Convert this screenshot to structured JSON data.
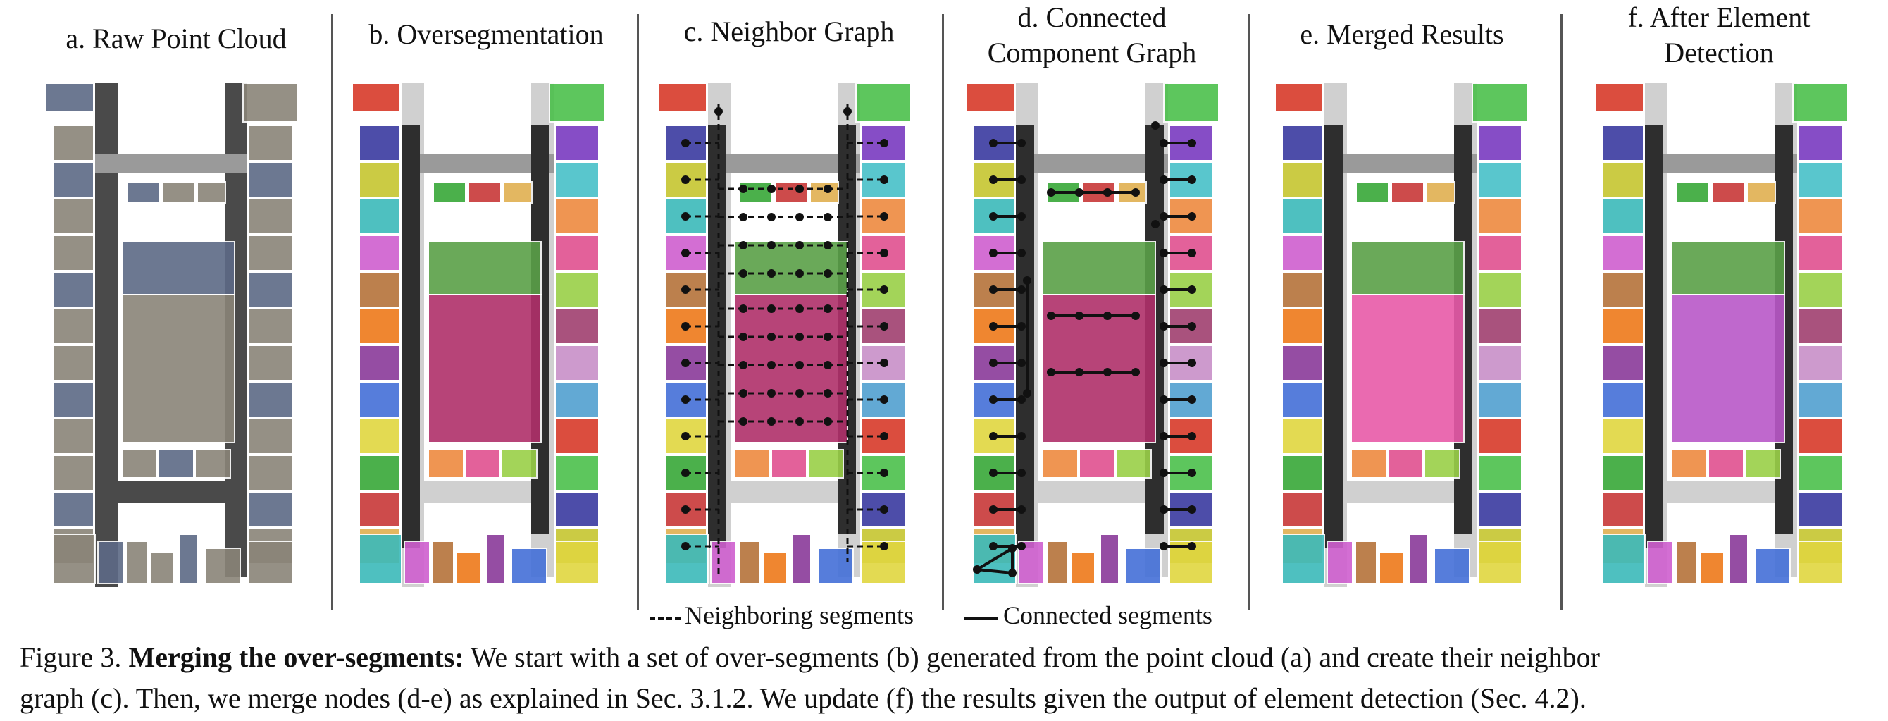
{
  "panels": [
    {
      "id": "a",
      "title_lines": [
        "a. Raw Point Cloud"
      ]
    },
    {
      "id": "b",
      "title_lines": [
        "b. Oversegmentation"
      ]
    },
    {
      "id": "c",
      "title_lines": [
        "c. Neighbor Graph"
      ]
    },
    {
      "id": "d",
      "title_lines": [
        "d. Connected",
        "Component Graph"
      ]
    },
    {
      "id": "e",
      "title_lines": [
        "e. Merged Results"
      ]
    },
    {
      "id": "f",
      "title_lines": [
        "f. After Element",
        "Detection"
      ]
    }
  ],
  "legend": {
    "neighbor": "Neighboring segments",
    "connected": "Connected segments"
  },
  "caption": {
    "prefix": "Figure 3.",
    "bold": "Merging the over-segments:",
    "line1_rest": "We start with a set of over-segments (b) generated from the point cloud (a) and create their neighbor",
    "line2": "graph (c). Then, we merge nodes (d-e) as explained in Sec. 3.1.2. We update (f) the results given the output of element detection (Sec. 4.2)."
  },
  "colors": {
    "hallway": "#3b3b3b",
    "raw_room": "#8a8478",
    "raw_floor": "#5d6a86",
    "palette_b": [
      "#d83a2a",
      "#4cc04c",
      "#3a3aa0",
      "#c6c630",
      "#3bbaba",
      "#cf5fcf",
      "#b5733a",
      "#ee7a1a",
      "#8a3a9a",
      "#4470d8",
      "#e0d640",
      "#38a838",
      "#c83838",
      "#e0b050",
      "#7a3ac0",
      "#48c0c8",
      "#ee8a40",
      "#e05090",
      "#9ad048",
      "#a04070",
      "#c890c8",
      "#52a0d0"
    ],
    "center_big_b": "#b0306a",
    "center_big_e": "#e85aa8",
    "center_big_f": "#b958c8"
  }
}
